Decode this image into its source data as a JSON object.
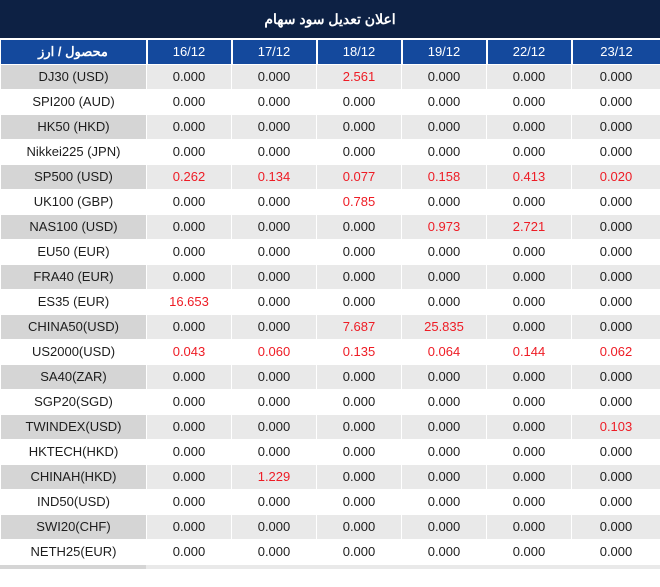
{
  "title": "اعلان تعديل سود سهام",
  "table": {
    "product_header": "محصول / ارز",
    "dates": [
      "16/12",
      "17/12",
      "18/12",
      "19/12",
      "22/12",
      "23/12"
    ],
    "rows": [
      {
        "name": "DJ30 (USD)",
        "values": [
          "0.000",
          "0.000",
          "2.561",
          "0.000",
          "0.000",
          "0.000"
        ],
        "red": [
          false,
          false,
          true,
          false,
          false,
          false
        ]
      },
      {
        "name": "SPI200 (AUD)",
        "values": [
          "0.000",
          "0.000",
          "0.000",
          "0.000",
          "0.000",
          "0.000"
        ],
        "red": [
          false,
          false,
          false,
          false,
          false,
          false
        ]
      },
      {
        "name": "HK50 (HKD)",
        "values": [
          "0.000",
          "0.000",
          "0.000",
          "0.000",
          "0.000",
          "0.000"
        ],
        "red": [
          false,
          false,
          false,
          false,
          false,
          false
        ]
      },
      {
        "name": "Nikkei225 (JPN)",
        "values": [
          "0.000",
          "0.000",
          "0.000",
          "0.000",
          "0.000",
          "0.000"
        ],
        "red": [
          false,
          false,
          false,
          false,
          false,
          false
        ]
      },
      {
        "name": "SP500 (USD)",
        "values": [
          "0.262",
          "0.134",
          "0.077",
          "0.158",
          "0.413",
          "0.020"
        ],
        "red": [
          true,
          true,
          true,
          true,
          true,
          true
        ]
      },
      {
        "name": "UK100 (GBP)",
        "values": [
          "0.000",
          "0.000",
          "0.785",
          "0.000",
          "0.000",
          "0.000"
        ],
        "red": [
          false,
          false,
          true,
          false,
          false,
          false
        ]
      },
      {
        "name": "NAS100 (USD)",
        "values": [
          "0.000",
          "0.000",
          "0.000",
          "0.973",
          "2.721",
          "0.000"
        ],
        "red": [
          false,
          false,
          false,
          true,
          true,
          false
        ]
      },
      {
        "name": "EU50 (EUR)",
        "values": [
          "0.000",
          "0.000",
          "0.000",
          "0.000",
          "0.000",
          "0.000"
        ],
        "red": [
          false,
          false,
          false,
          false,
          false,
          false
        ]
      },
      {
        "name": "FRA40 (EUR)",
        "values": [
          "0.000",
          "0.000",
          "0.000",
          "0.000",
          "0.000",
          "0.000"
        ],
        "red": [
          false,
          false,
          false,
          false,
          false,
          false
        ]
      },
      {
        "name": "ES35 (EUR)",
        "values": [
          "16.653",
          "0.000",
          "0.000",
          "0.000",
          "0.000",
          "0.000"
        ],
        "red": [
          true,
          false,
          false,
          false,
          false,
          false
        ]
      },
      {
        "name": "CHINA50(USD)",
        "values": [
          "0.000",
          "0.000",
          "7.687",
          "25.835",
          "0.000",
          "0.000"
        ],
        "red": [
          false,
          false,
          true,
          true,
          false,
          false
        ]
      },
      {
        "name": "US2000(USD)",
        "values": [
          "0.043",
          "0.060",
          "0.135",
          "0.064",
          "0.144",
          "0.062"
        ],
        "red": [
          true,
          true,
          true,
          true,
          true,
          true
        ]
      },
      {
        "name": "SA40(ZAR)",
        "values": [
          "0.000",
          "0.000",
          "0.000",
          "0.000",
          "0.000",
          "0.000"
        ],
        "red": [
          false,
          false,
          false,
          false,
          false,
          false
        ]
      },
      {
        "name": "SGP20(SGD)",
        "values": [
          "0.000",
          "0.000",
          "0.000",
          "0.000",
          "0.000",
          "0.000"
        ],
        "red": [
          false,
          false,
          false,
          false,
          false,
          false
        ]
      },
      {
        "name": "TWINDEX(USD)",
        "values": [
          "0.000",
          "0.000",
          "0.000",
          "0.000",
          "0.000",
          "0.103"
        ],
        "red": [
          false,
          false,
          false,
          false,
          false,
          true
        ]
      },
      {
        "name": "HKTECH(HKD)",
        "values": [
          "0.000",
          "0.000",
          "0.000",
          "0.000",
          "0.000",
          "0.000"
        ],
        "red": [
          false,
          false,
          false,
          false,
          false,
          false
        ]
      },
      {
        "name": "CHINAH(HKD)",
        "values": [
          "0.000",
          "1.229",
          "0.000",
          "0.000",
          "0.000",
          "0.000"
        ],
        "red": [
          false,
          true,
          false,
          false,
          false,
          false
        ]
      },
      {
        "name": "IND50(USD)",
        "values": [
          "0.000",
          "0.000",
          "0.000",
          "0.000",
          "0.000",
          "0.000"
        ],
        "red": [
          false,
          false,
          false,
          false,
          false,
          false
        ]
      },
      {
        "name": "SWI20(CHF)",
        "values": [
          "0.000",
          "0.000",
          "0.000",
          "0.000",
          "0.000",
          "0.000"
        ],
        "red": [
          false,
          false,
          false,
          false,
          false,
          false
        ]
      },
      {
        "name": "NETH25(EUR)",
        "values": [
          "0.000",
          "0.000",
          "0.000",
          "0.000",
          "0.000",
          "0.000"
        ],
        "red": [
          false,
          false,
          false,
          false,
          false,
          false
        ]
      }
    ]
  },
  "colors": {
    "title_bg": "#0d2144",
    "header_bg": "#14499d",
    "red_value": "#ee1c25",
    "black_value": "#1d1d1d",
    "stripe_name_bg": "#d5d5d5",
    "stripe_value_bg": "#e9e9e9",
    "white_row_bg": "#ffffff"
  }
}
